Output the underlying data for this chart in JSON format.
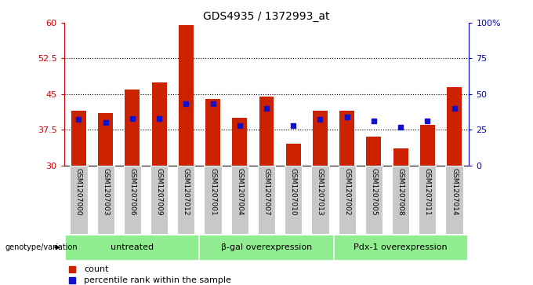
{
  "title": "GDS4935 / 1372993_at",
  "samples": [
    "GSM1207000",
    "GSM1207003",
    "GSM1207006",
    "GSM1207009",
    "GSM1207012",
    "GSM1207001",
    "GSM1207004",
    "GSM1207007",
    "GSM1207010",
    "GSM1207013",
    "GSM1207002",
    "GSM1207005",
    "GSM1207008",
    "GSM1207011",
    "GSM1207014"
  ],
  "counts": [
    41.5,
    41.0,
    46.0,
    47.5,
    59.5,
    44.0,
    40.0,
    44.5,
    34.5,
    41.5,
    41.5,
    36.0,
    33.5,
    38.5,
    46.5
  ],
  "percentile_pct": [
    32,
    30,
    33,
    33,
    43,
    43,
    28,
    40,
    28,
    32,
    34,
    31,
    27,
    31,
    40
  ],
  "groups": [
    {
      "label": "untreated",
      "start": 0,
      "end": 5
    },
    {
      "label": "β-gal overexpression",
      "start": 5,
      "end": 10
    },
    {
      "label": "Pdx-1 overexpression",
      "start": 10,
      "end": 15
    }
  ],
  "bar_color": "#CC2200",
  "dot_color": "#1111CC",
  "ylim_left": [
    30,
    60
  ],
  "ylim_right": [
    0,
    100
  ],
  "yticks_left": [
    30,
    37.5,
    45,
    52.5,
    60
  ],
  "yticks_right": [
    0,
    25,
    50,
    75,
    100
  ],
  "ytick_labels_right": [
    "0",
    "25",
    "50",
    "75",
    "100%"
  ],
  "dotted_lines": [
    37.5,
    45.0,
    52.5
  ],
  "bar_width": 0.55,
  "genotype_label": "genotype/variation",
  "legend_count": "count",
  "legend_percentile": "percentile rank within the sample",
  "background_color": "#ffffff",
  "bar_bg_color": "#c8c8c8",
  "group_color": "#90ee90",
  "left_axis_color": "#cc0000",
  "right_axis_color": "#0000cc"
}
